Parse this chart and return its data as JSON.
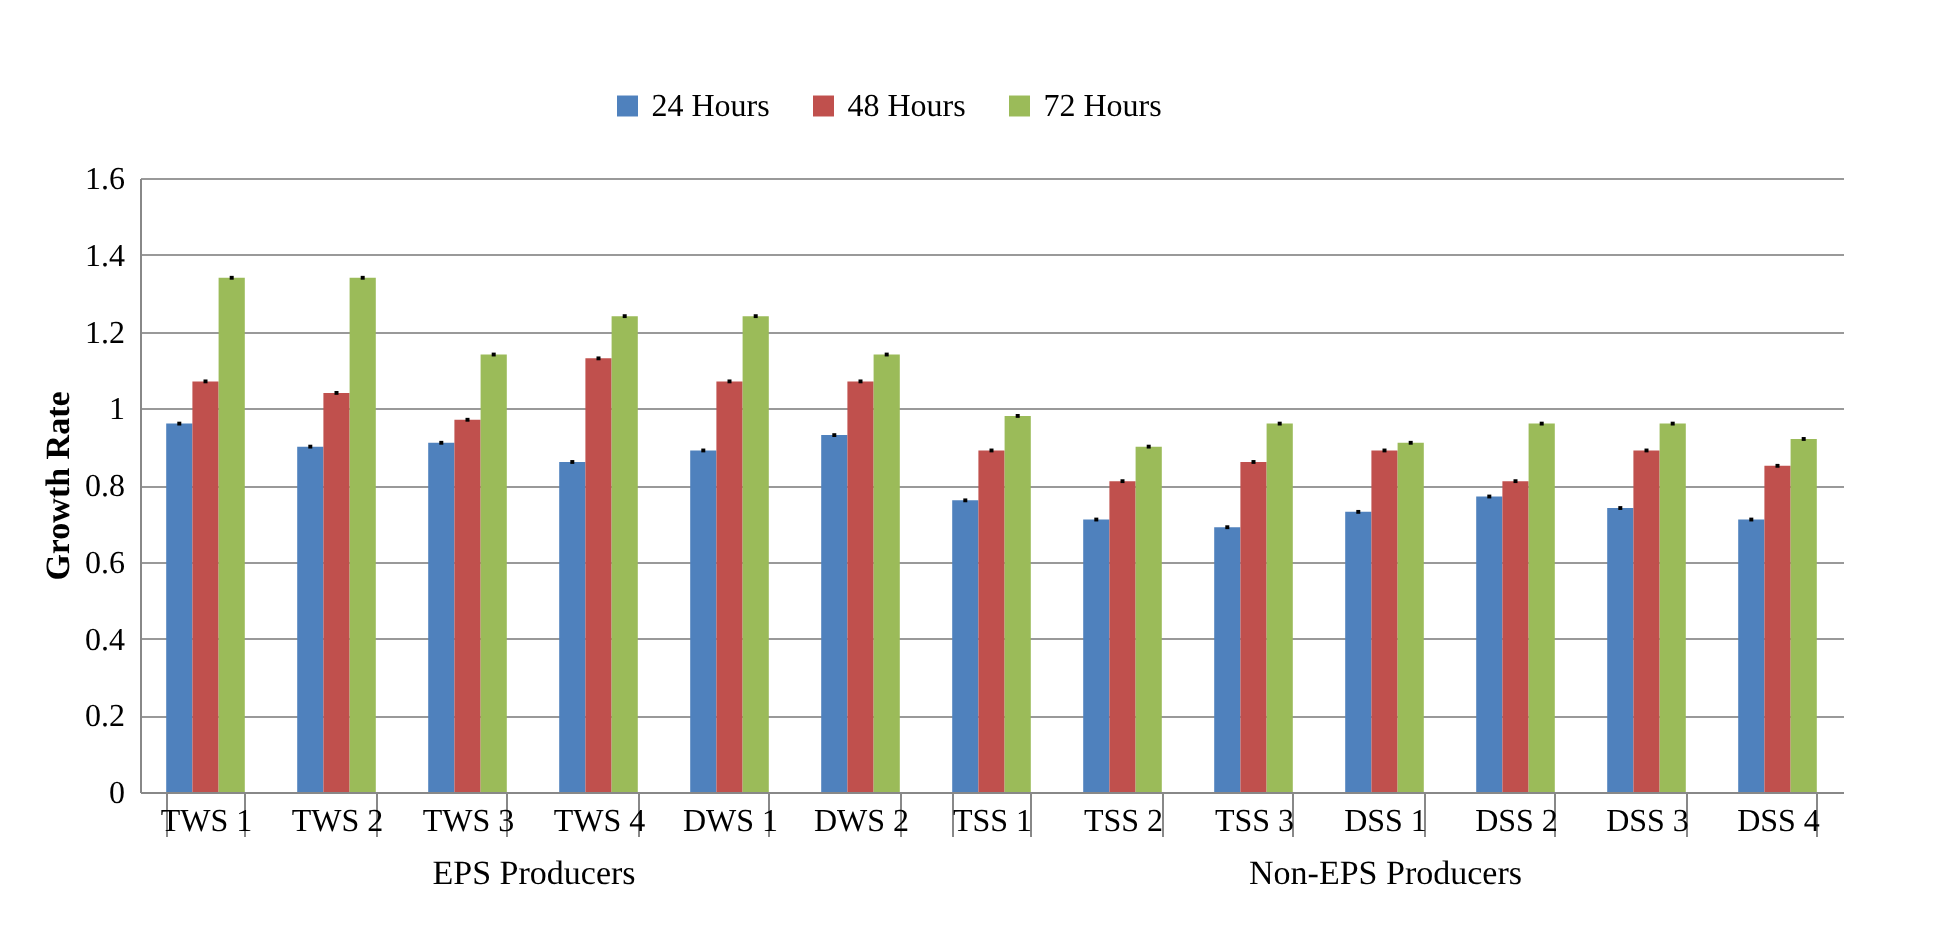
{
  "chart_data": [
    {
      "type": "bar",
      "xlabel": "EPS Producers",
      "ylabel": "Growth Rate",
      "categories": [
        "TWS 1",
        "TWS 2",
        "TWS 3",
        "TWS 4",
        "DWS 1",
        "DWS 2"
      ],
      "series": [
        {
          "name": "24 Hours",
          "color": "#4f81bd",
          "values": [
            0.96,
            0.9,
            0.91,
            0.86,
            0.89,
            0.93
          ],
          "errors": [
            0.005,
            0.005,
            0.005,
            0.005,
            0.005,
            0.005
          ]
        },
        {
          "name": "48 Hours",
          "color": "#c0504d",
          "values": [
            1.07,
            1.04,
            0.97,
            1.13,
            1.07,
            1.07
          ],
          "errors": [
            0.005,
            0.005,
            0.005,
            0.005,
            0.005,
            0.005
          ]
        },
        {
          "name": "72 Hours",
          "color": "#9bbb59",
          "values": [
            1.34,
            1.34,
            1.14,
            1.24,
            1.24,
            1.14
          ],
          "errors": [
            0.005,
            0.005,
            0.005,
            0.005,
            0.005,
            0.005
          ]
        }
      ],
      "ylim": [
        0,
        1.6
      ],
      "yticks": [
        0,
        0.2,
        0.4,
        0.6,
        0.8,
        1,
        1.2,
        1.4,
        1.6
      ],
      "grid": "y",
      "legend": "top"
    },
    {
      "type": "bar",
      "xlabel": "Non-EPS Producers",
      "categories": [
        "TSS 1",
        "TSS 2",
        "TSS 3",
        "DSS 1",
        "DSS 2",
        "DSS 3",
        "DSS 4"
      ],
      "series": [
        {
          "name": "24 Hours",
          "color": "#4f81bd",
          "values": [
            0.76,
            0.71,
            0.69,
            0.73,
            0.77,
            0.74,
            0.71
          ],
          "errors": [
            0.005,
            0.005,
            0.005,
            0.005,
            0.005,
            0.005,
            0.005
          ]
        },
        {
          "name": "48 Hours",
          "color": "#c0504d",
          "values": [
            0.89,
            0.81,
            0.86,
            0.89,
            0.81,
            0.89,
            0.85
          ],
          "errors": [
            0.005,
            0.005,
            0.005,
            0.005,
            0.005,
            0.005,
            0.005
          ]
        },
        {
          "name": "72 Hours",
          "color": "#9bbb59",
          "values": [
            0.98,
            0.9,
            0.96,
            0.91,
            0.96,
            0.96,
            0.92
          ],
          "errors": [
            0.005,
            0.005,
            0.005,
            0.005,
            0.005,
            0.005,
            0.005
          ]
        }
      ],
      "ylim": [
        0,
        1.6
      ],
      "yticks": [
        0,
        0.2,
        0.4,
        0.6,
        0.8,
        1,
        1.2,
        1.4,
        1.6
      ],
      "grid": "y",
      "legend": "top",
      "tick_labels": "x"
    }
  ]
}
